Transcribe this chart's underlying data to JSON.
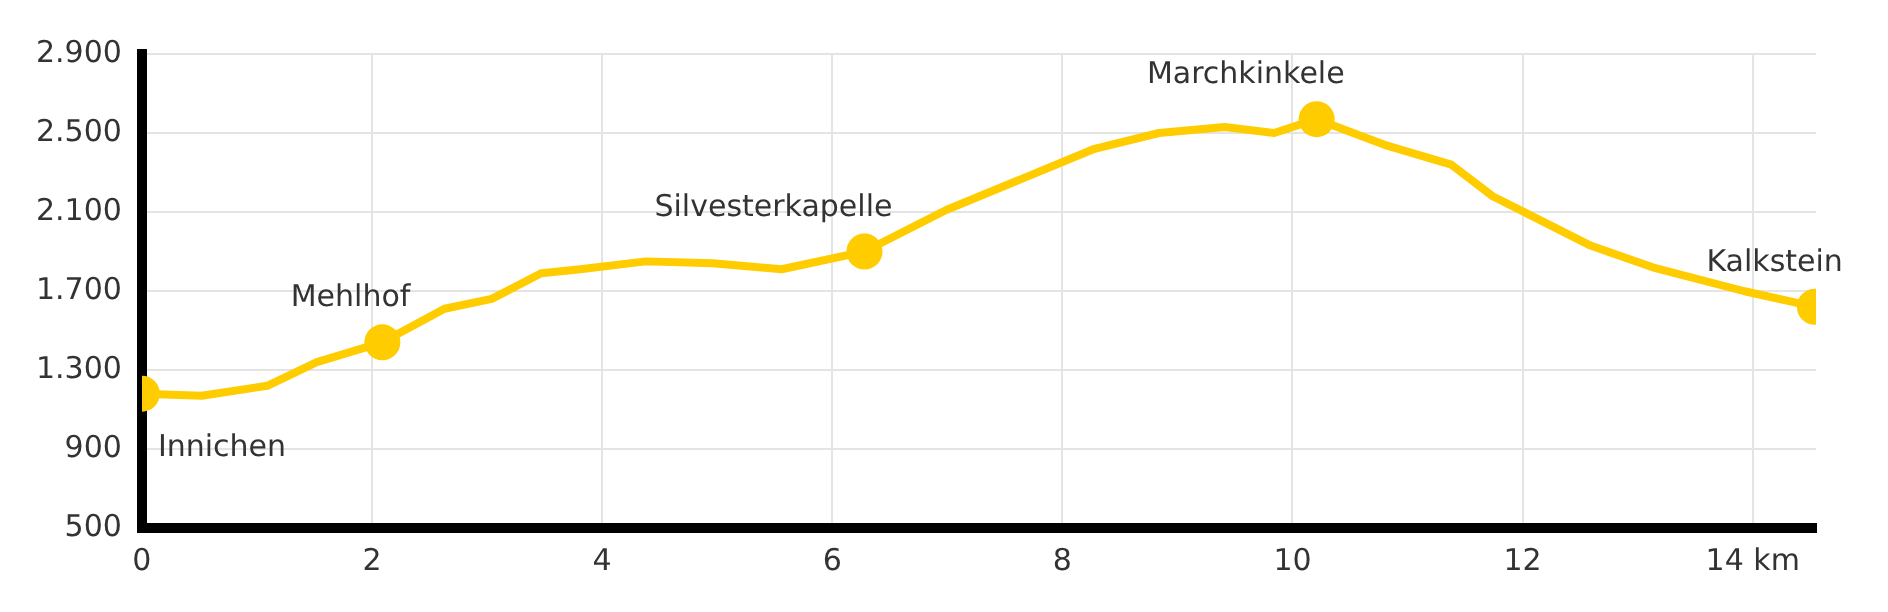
{
  "chart_data": {
    "type": "line",
    "xlim": [
      0,
      14.55
    ],
    "ylim": [
      500,
      2900
    ],
    "xticks": [
      0,
      2,
      4,
      6,
      8,
      10,
      12,
      {
        "value": 14,
        "label": "14 km"
      }
    ],
    "yticks": [
      500,
      900,
      {
        "value": 1300,
        "label": "1.300"
      },
      {
        "value": 1700,
        "label": "1.700"
      },
      {
        "value": 2100,
        "label": "2.100"
      },
      {
        "value": 2500,
        "label": "2.500"
      },
      {
        "value": 2900,
        "label": "2.900"
      }
    ],
    "grid": true,
    "legend": false,
    "series": [
      {
        "color": "#ffcc00",
        "marker": "none",
        "x": [
          0,
          0.52,
          1.09,
          1.52,
          2.09,
          2.63,
          3.04,
          3.47,
          3.81,
          4.38,
          4.96,
          5.56,
          6.28,
          6.99,
          8.28,
          8.84,
          9.41,
          9.84,
          10.21,
          10.8,
          11.38,
          11.74,
          12.59,
          13.13,
          13.92,
          14.54
        ],
        "values": [
          1180,
          1170,
          1220,
          1340,
          1440,
          1610,
          1660,
          1790,
          1810,
          1850,
          1840,
          1810,
          1900,
          2110,
          2420,
          2500,
          2530,
          2500,
          2570,
          2440,
          2340,
          2180,
          1930,
          1820,
          1700,
          1620
        ]
      },
      {
        "type": "scatter",
        "color": "#ffcc00",
        "marker": "circle",
        "x": [
          0,
          2.09,
          6.28,
          10.21,
          14.54
        ],
        "values": [
          1180,
          1440,
          1900,
          2570,
          1620
        ]
      }
    ],
    "annotations": [
      {
        "text": "Innichen",
        "x": 0,
        "y": 1180
      },
      {
        "text": "Mehlhof",
        "x": 2.09,
        "y": 1440
      },
      {
        "text": "Silvesterkapelle",
        "x": 6.28,
        "y": 1900
      },
      {
        "text": "Marchkinkele",
        "x": 10.21,
        "y": 2570
      },
      {
        "text": "Kalkstein",
        "x": 14.54,
        "y": 1620
      }
    ]
  }
}
